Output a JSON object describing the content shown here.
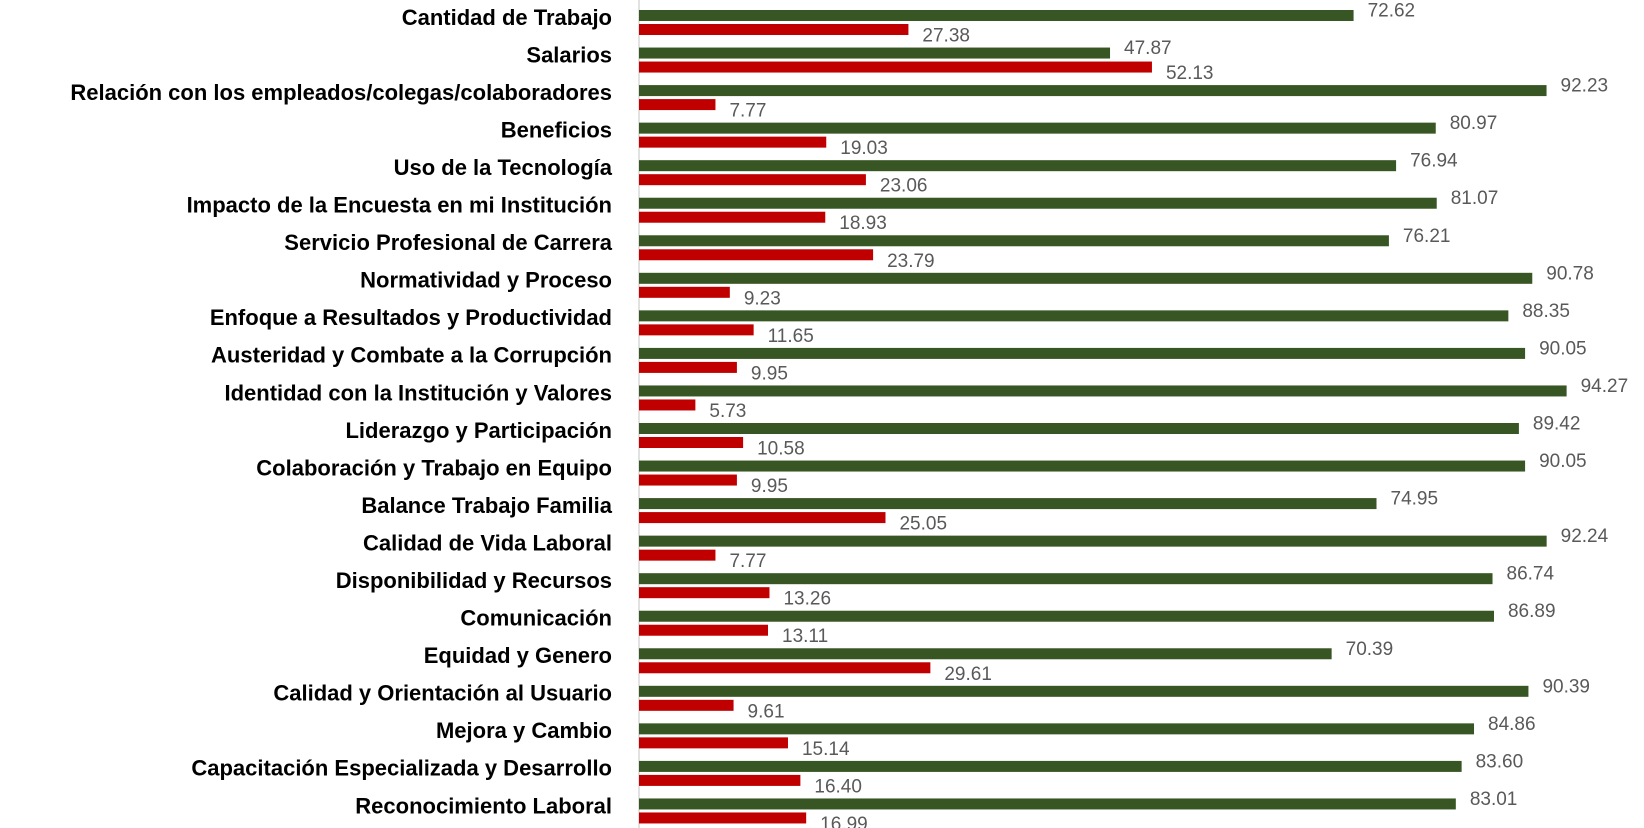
{
  "chart_data": {
    "type": "bar",
    "orientation": "horizontal",
    "categories": [
      "Cantidad de Trabajo",
      "Salarios",
      "Relación con los empleados/colegas/colaboradores",
      "Beneficios",
      "Uso de la Tecnología",
      "Impacto de la Encuesta en mi Institución",
      "Servicio Profesional de Carrera",
      "Normatividad y Proceso",
      "Enfoque a Resultados y Productividad",
      "Austeridad y Combate a la Corrupción",
      "Identidad con la Institución y Valores",
      "Liderazgo y Participación",
      "Colaboración y Trabajo en Equipo",
      "Balance Trabajo Familia",
      "Calidad de Vida Laboral",
      "Disponibilidad y Recursos",
      "Comunicación",
      "Equidad y Genero",
      "Calidad y Orientación al Usuario",
      "Mejora y Cambio",
      "Capacitación Especializada y Desarrollo",
      "Reconocimiento Laboral"
    ],
    "series": [
      {
        "color": "#375623",
        "values": [
          72.62,
          47.87,
          92.23,
          80.97,
          76.94,
          81.07,
          76.21,
          90.78,
          88.35,
          90.05,
          94.27,
          89.42,
          90.05,
          74.95,
          92.24,
          86.74,
          86.89,
          70.39,
          90.39,
          84.86,
          83.6,
          83.01
        ],
        "value_labels": [
          "72.62",
          "47.87",
          "92.23",
          "80.97",
          "76.94",
          "81.07",
          "76.21",
          "90.78",
          "88.35",
          "90.05",
          "94.27",
          "89.42",
          "90.05",
          "74.95",
          "92.24",
          "86.74",
          "86.89",
          "70.39",
          "90.39",
          "84.86",
          "83.60",
          "83.01"
        ]
      },
      {
        "color": "#c00000",
        "values": [
          27.38,
          52.13,
          7.77,
          19.03,
          23.06,
          18.93,
          23.79,
          9.23,
          11.65,
          9.95,
          5.73,
          10.58,
          9.95,
          25.05,
          7.77,
          13.26,
          13.11,
          29.61,
          9.61,
          15.14,
          16.4,
          16.99
        ],
        "value_labels": [
          "27.38",
          "52.13",
          "7.77",
          "19.03",
          "23.06",
          "18.93",
          "23.79",
          "9.23",
          "11.65",
          "9.95",
          "5.73",
          "10.58",
          "9.95",
          "25.05",
          "7.77",
          "13.26",
          "13.11",
          "29.61",
          "9.61",
          "15.14",
          "16.40",
          "16.99"
        ]
      }
    ],
    "xlim": [
      0,
      100
    ]
  }
}
